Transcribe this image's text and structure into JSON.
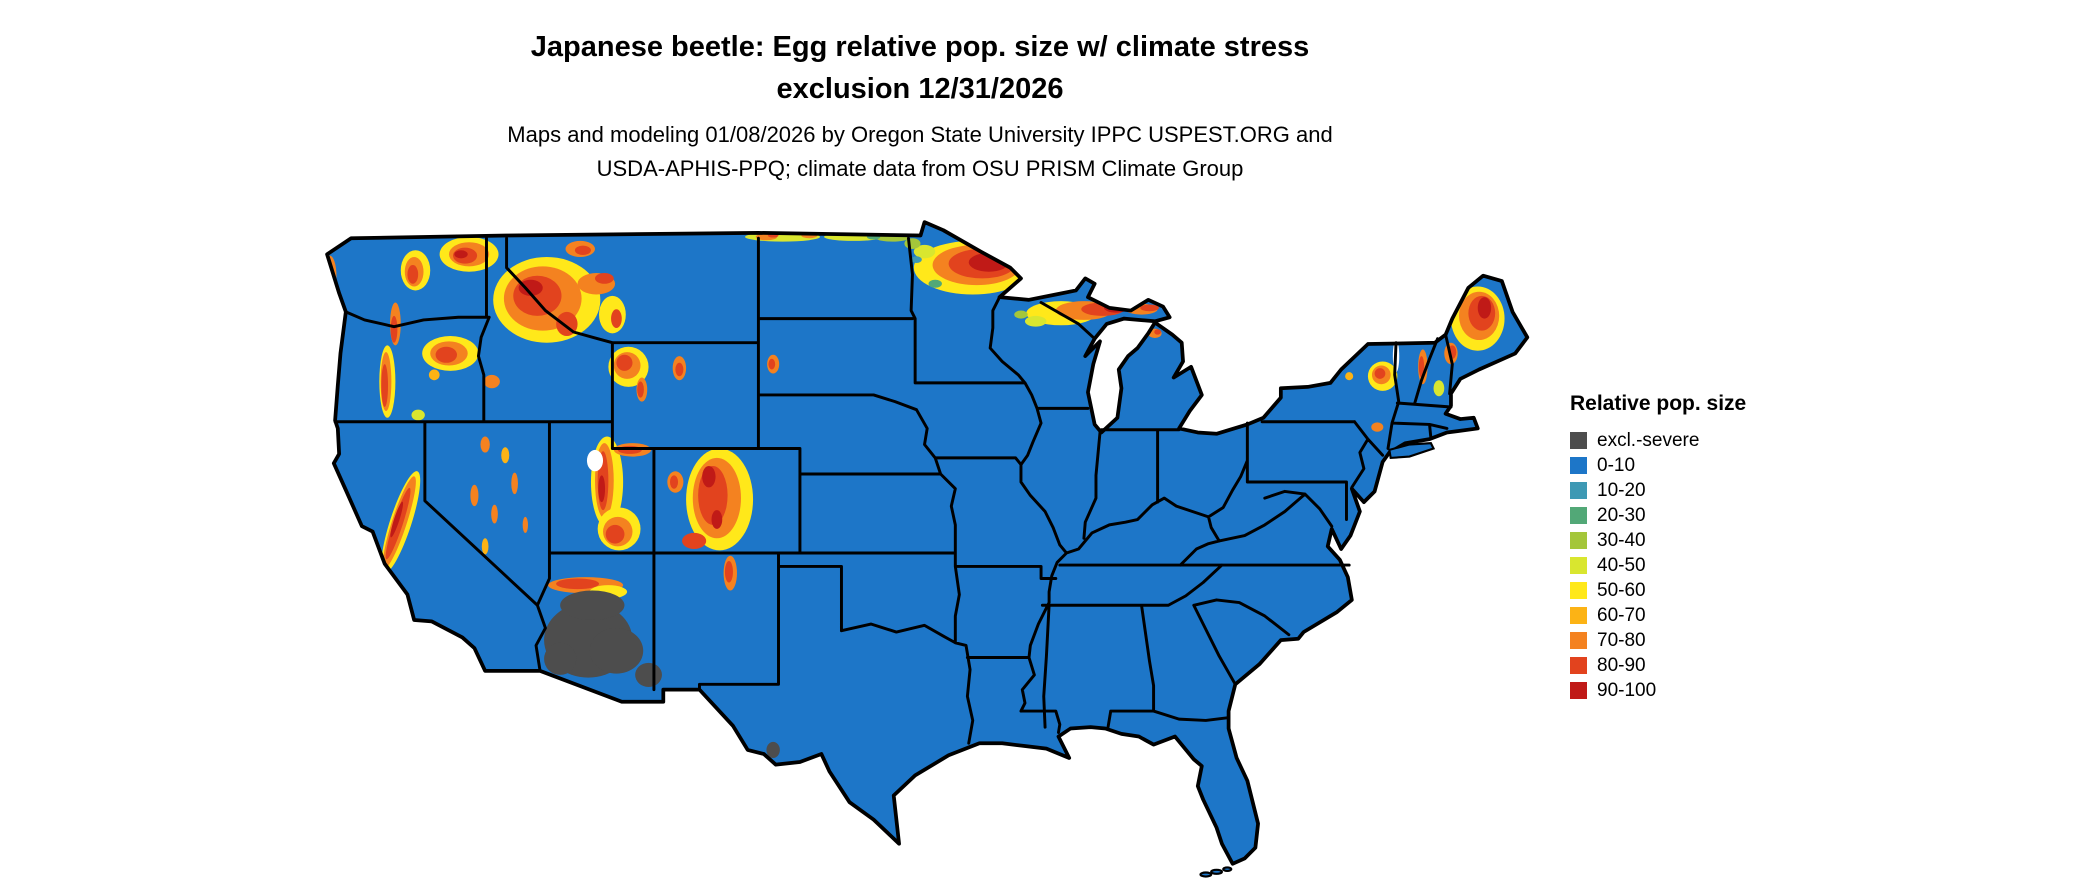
{
  "title": {
    "line1": "Japanese beetle: Egg relative pop. size w/ climate stress",
    "line2": "exclusion 12/31/2026"
  },
  "subtitle": {
    "line1": "Maps and modeling 01/08/2026 by Oregon State University IPPC USPEST.ORG and",
    "line2": "USDA-APHIS-PPQ; climate data from OSU PRISM Climate Group"
  },
  "legend": {
    "title": "Relative pop. size",
    "items": [
      {
        "label": "excl.-severe",
        "color": "#4d4d4d"
      },
      {
        "label": "0-10",
        "color": "#1d76c8"
      },
      {
        "label": "10-20",
        "color": "#3e99b4"
      },
      {
        "label": "20-30",
        "color": "#52a877"
      },
      {
        "label": "30-40",
        "color": "#a4c63a"
      },
      {
        "label": "40-50",
        "color": "#d9e62f"
      },
      {
        "label": "50-60",
        "color": "#ffe81a"
      },
      {
        "label": "60-70",
        "color": "#fcb315"
      },
      {
        "label": "70-80",
        "color": "#f48220"
      },
      {
        "label": "80-90",
        "color": "#e2431e"
      },
      {
        "label": "90-100",
        "color": "#c01a17"
      }
    ]
  },
  "map": {
    "region": "Continental United States",
    "ocean_color": "#ffffff",
    "border_color": "#000000"
  }
}
